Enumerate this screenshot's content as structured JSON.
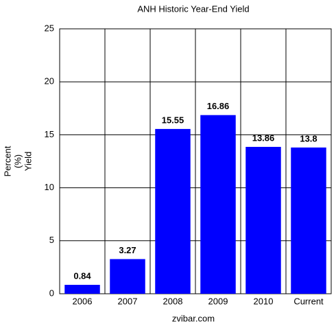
{
  "chart_data": {
    "type": "bar",
    "title": "ANH Historic Year-End Yield",
    "ylabel": [
      "Percent",
      "(%)",
      "Yield"
    ],
    "categories": [
      "2006",
      "2007",
      "2008",
      "2009",
      "2010",
      "Current"
    ],
    "values": [
      0.84,
      3.27,
      15.55,
      16.86,
      13.86,
      13.8
    ],
    "color": "#0000ff",
    "ylim": [
      0,
      25
    ],
    "yticks": [
      0,
      5,
      10,
      15,
      20,
      25
    ],
    "grid": true,
    "footer": "zvibar.com"
  }
}
